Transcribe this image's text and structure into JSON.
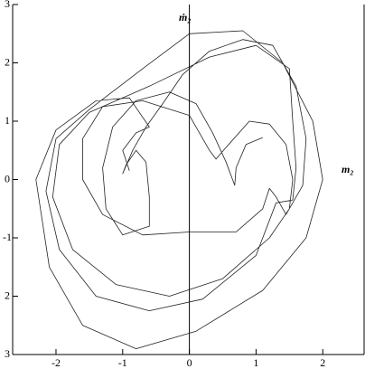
{
  "chart_data": {
    "type": "line",
    "x_label": "m₂",
    "y_label": "ṁ₂",
    "xlim": [
      -2.65,
      2.62
    ],
    "ylim": [
      -3,
      3
    ],
    "xticks": [
      -2,
      -1,
      0,
      1,
      2
    ],
    "yticks": [
      {
        "value": -3,
        "label": "3"
      },
      {
        "value": -2,
        "label": "2"
      },
      -1,
      0,
      1,
      2,
      3
    ],
    "color": "#222222",
    "x": [
      1.1,
      0.85,
      0.7,
      0.68,
      0.55,
      0.35,
      0.1,
      -0.3,
      -0.8,
      -1.15,
      -1.3,
      -1.25,
      -1.0,
      -0.6,
      -0.6,
      -0.65,
      -0.8,
      -0.95,
      -1.0,
      -0.85,
      -0.65,
      -0.4,
      -0.1,
      0.3,
      0.8,
      1.25,
      1.6,
      1.75,
      1.7,
      1.45,
      1.3,
      1.2,
      1.1,
      0.7,
      0,
      -0.7,
      -1.3,
      -1.6,
      -1.6,
      -1.3,
      -0.7,
      0,
      0.3,
      0.4,
      0.55,
      0.9,
      1.2,
      1.45,
      1.55,
      1.5,
      1.2,
      0.5,
      -0.3,
      -1.1,
      -1.75,
      -2.05,
      -1.95,
      -1.5,
      -0.6,
      0.3,
      1.0,
      1.5,
      1.55,
      1.6,
      1.55,
      1.3,
      1.0,
      0.2,
      -0.6,
      -1.4,
      -1.95,
      -2.15,
      -2.0,
      -1.5,
      -0.7,
      0,
      0.8,
      1.4,
      1.85,
      2.0,
      1.75,
      1.1,
      0.1,
      -0.8,
      -1.6,
      -2.1,
      -2.3,
      -2.0,
      -1.4,
      -0.9,
      -0.6,
      -0.8,
      -1.0,
      -0.9
    ],
    "y": [
      0.72,
      0.6,
      0.2,
      -0.1,
      0.3,
      0.8,
      1.3,
      1.5,
      1.35,
      0.9,
      0.2,
      -0.5,
      -0.95,
      -0.8,
      -0.3,
      0.3,
      0.5,
      0.25,
      0.1,
      0.5,
      0.9,
      1.3,
      1.8,
      2.2,
      2.4,
      2.3,
      1.6,
      0.7,
      -0.1,
      -0.6,
      -0.3,
      -0.15,
      -0.5,
      -0.9,
      -0.9,
      -0.95,
      -0.6,
      0,
      0.7,
      1.25,
      1.35,
      1.1,
      0.5,
      0.35,
      0.55,
      1.0,
      0.95,
      0.6,
      0,
      -0.5,
      -1.0,
      -1.7,
      -2.0,
      -1.8,
      -1.2,
      -0.3,
      0.6,
      1.15,
      1.6,
      2.1,
      2.3,
      1.9,
      1.0,
      0.2,
      -0.35,
      -0.4,
      -1.3,
      -2.05,
      -2.25,
      -2.0,
      -1.2,
      -0.2,
      0.7,
      1.2,
      1.9,
      2.5,
      2.55,
      2.0,
      1.0,
      0,
      -1.0,
      -1.9,
      -2.6,
      -2.9,
      -2.5,
      -1.5,
      0,
      0.85,
      1.35,
      1.4,
      0.9,
      0.8,
      0.5,
      0.15
    ]
  }
}
